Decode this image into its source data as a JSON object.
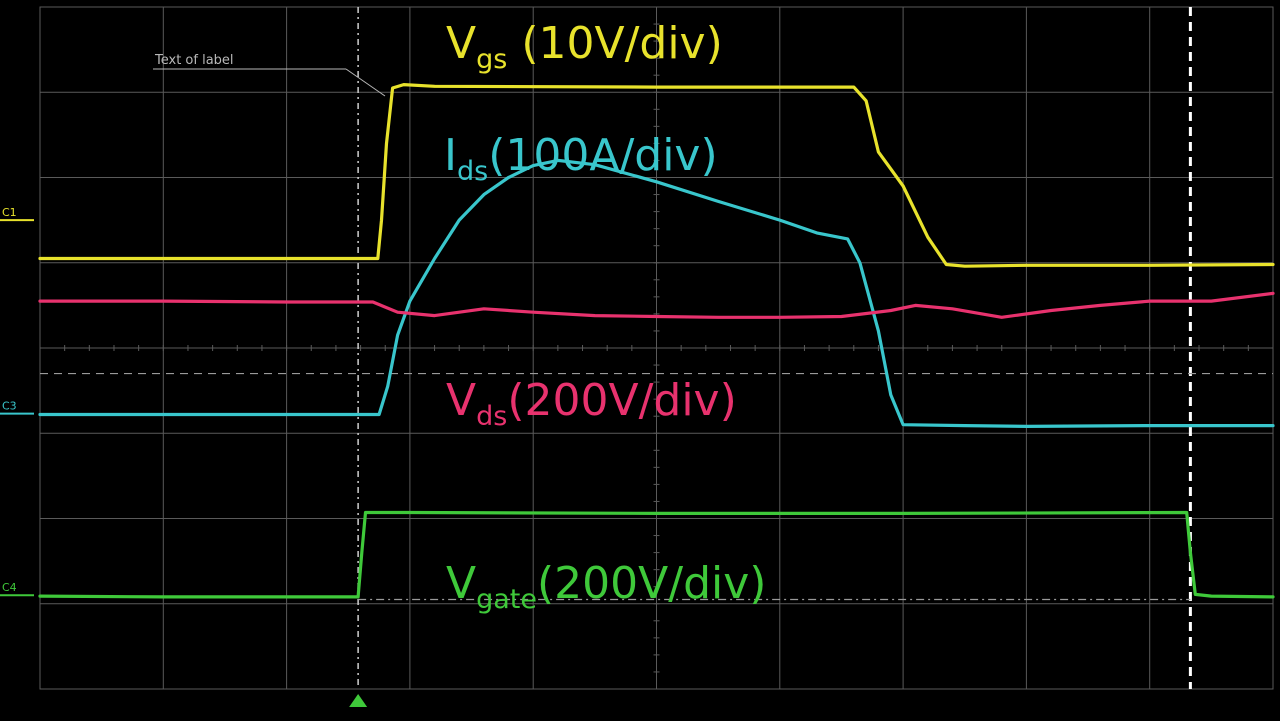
{
  "chart_data": {
    "type": "line",
    "title": "",
    "xlabel": "",
    "ylabel": "",
    "grid": true,
    "grid_divisions": {
      "x": 10,
      "y": 8
    },
    "xlim": [
      0,
      10
    ],
    "ylim": [
      0,
      8
    ],
    "trigger_marker_x": 2.58,
    "cursor_x": 9.33,
    "marker_label": "Text of label",
    "colors": {
      "background": "#000000",
      "grid": "#5a5a5a",
      "vgs": "#e8e22c",
      "ids": "#39c6cc",
      "vds": "#e8326e",
      "vgate": "#3fc93a",
      "cursor": "#ffffff"
    },
    "channel_markers": [
      {
        "text": "C1",
        "y": 5.5,
        "color": "#e8e22c"
      },
      {
        "text": "C3",
        "y": 3.23,
        "color": "#39c6cc"
      },
      {
        "text": "C4",
        "y": 1.1,
        "color": "#3fc93a"
      }
    ],
    "series": [
      {
        "key": "vgs",
        "name": "Vgs (10V/div)",
        "color": "#e8e22c",
        "x": [
          0,
          2.74,
          2.77,
          2.81,
          2.86,
          2.95,
          3.2,
          5.0,
          6.0,
          6.6,
          6.7,
          6.8,
          7.0,
          7.2,
          7.35,
          7.5,
          8.0,
          9.0,
          10.0
        ],
        "y": [
          5.05,
          5.05,
          5.5,
          6.4,
          7.05,
          7.09,
          7.07,
          7.06,
          7.06,
          7.06,
          6.9,
          6.3,
          5.9,
          5.3,
          4.98,
          4.96,
          4.97,
          4.97,
          4.98
        ]
      },
      {
        "key": "ids",
        "name": "Ids(100A/div)",
        "color": "#39c6cc",
        "x": [
          0,
          2.75,
          2.82,
          2.9,
          3.0,
          3.2,
          3.4,
          3.6,
          3.8,
          4.0,
          4.2,
          4.5,
          5.0,
          5.5,
          6.0,
          6.3,
          6.55,
          6.65,
          6.8,
          6.9,
          7.0,
          7.5,
          8.0,
          9.0,
          10.0
        ],
        "y": [
          3.22,
          3.22,
          3.55,
          4.15,
          4.55,
          5.05,
          5.5,
          5.8,
          6.0,
          6.14,
          6.2,
          6.15,
          5.95,
          5.72,
          5.5,
          5.35,
          5.28,
          5.0,
          4.2,
          3.45,
          3.1,
          3.09,
          3.08,
          3.09,
          3.09
        ]
      },
      {
        "key": "vds",
        "name": "Vds(200V/div)",
        "color": "#e8326e",
        "x": [
          0,
          1.0,
          2.0,
          2.7,
          2.9,
          3.2,
          3.6,
          4.0,
          4.5,
          5.0,
          5.5,
          6.0,
          6.5,
          6.9,
          7.1,
          7.4,
          7.8,
          8.2,
          8.6,
          9.0,
          9.5,
          10.0
        ],
        "y": [
          4.55,
          4.55,
          4.54,
          4.54,
          4.42,
          4.38,
          4.46,
          4.42,
          4.38,
          4.37,
          4.36,
          4.36,
          4.37,
          4.44,
          4.5,
          4.46,
          4.36,
          4.44,
          4.5,
          4.55,
          4.55,
          4.64
        ]
      },
      {
        "key": "vgate",
        "name": "Vgate(200V/div)",
        "color": "#3fc93a",
        "x": [
          0,
          1.0,
          2.58,
          2.61,
          2.64,
          3.0,
          5.0,
          7.0,
          9.3,
          9.33,
          9.37,
          9.5,
          10.0
        ],
        "y": [
          1.09,
          1.08,
          1.08,
          1.6,
          2.07,
          2.07,
          2.06,
          2.06,
          2.07,
          1.6,
          1.11,
          1.09,
          1.08
        ]
      }
    ]
  }
}
